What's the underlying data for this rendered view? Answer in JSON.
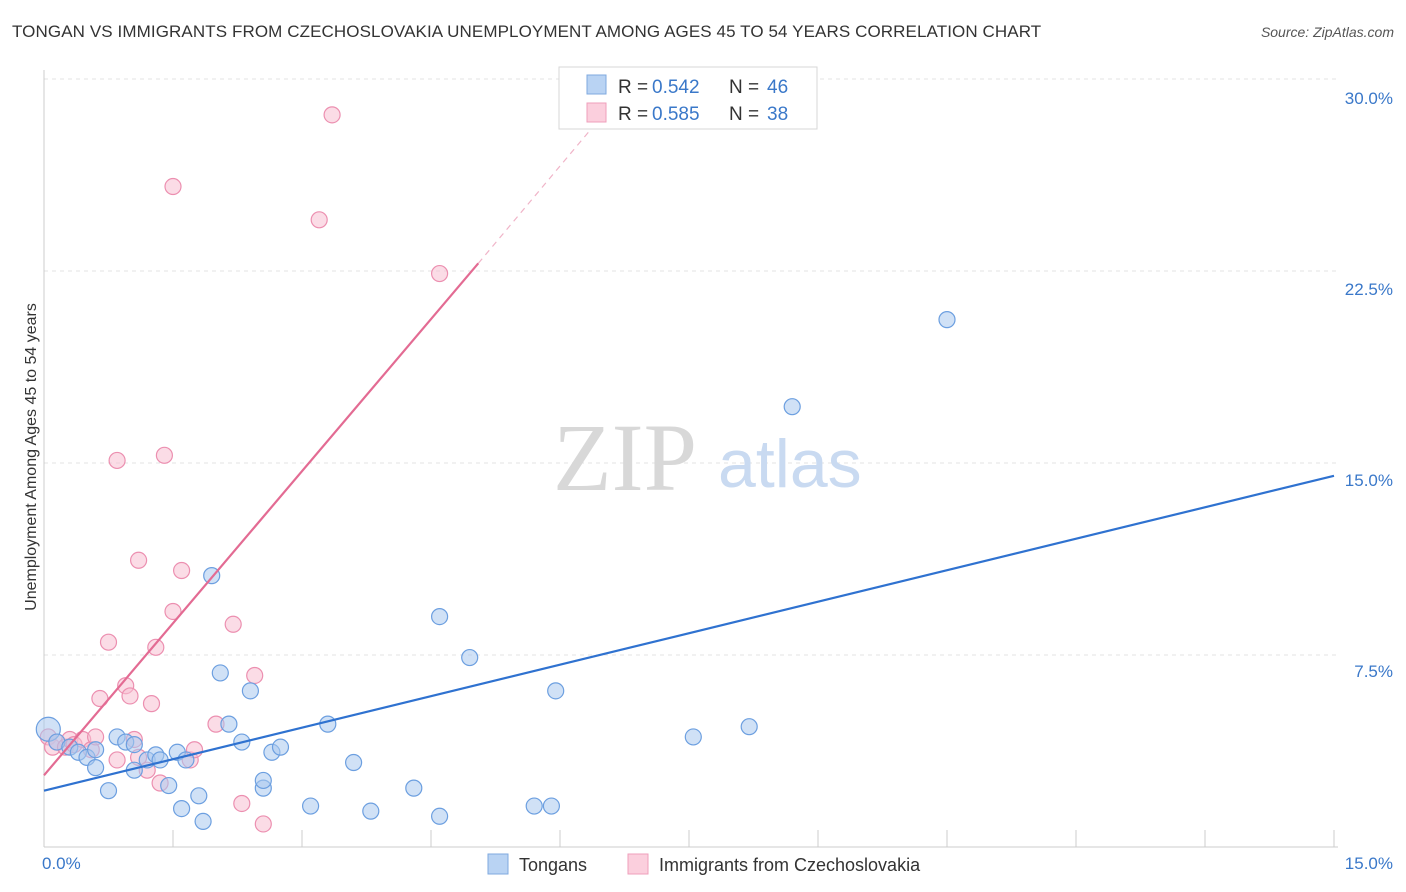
{
  "header": {
    "title": "TONGAN VS IMMIGRANTS FROM CZECHOSLOVAKIA UNEMPLOYMENT AMONG AGES 45 TO 54 YEARS CORRELATION CHART",
    "source": "Source: ZipAtlas.com"
  },
  "watermark": {
    "zip": "ZIP",
    "atlas": "atlas"
  },
  "legend": {
    "r_label": "R =",
    "n_label": "N =",
    "rows": [
      {
        "r": "0.542",
        "n": "46",
        "color": "#9fc3ee"
      },
      {
        "r": "0.585",
        "n": "38",
        "color": "#f5b8cc"
      }
    ]
  },
  "bottom_legend": [
    {
      "label": "Tongans",
      "color": "#9fc3ee"
    },
    {
      "label": "Immigrants from Czechoslovakia",
      "color": "#f5b8cc"
    }
  ],
  "colors": {
    "blue_fill": "#a9c9ef",
    "blue_stroke": "#6c9fe0",
    "blue_line": "#2f72d0",
    "pink_fill": "#f7bfd1",
    "pink_stroke": "#ec8fb0",
    "pink_line": "#e36b93",
    "tick_text": "#3a78c9"
  },
  "chart_data": {
    "type": "scatter",
    "title": "TONGAN VS IMMIGRANTS FROM CZECHOSLOVAKIA UNEMPLOYMENT AMONG AGES 45 TO 54 YEARS CORRELATION CHART",
    "xlabel": "",
    "ylabel": "Unemployment Among Ages 45 to 54 years",
    "xlim": [
      0,
      15
    ],
    "ylim": [
      0,
      31
    ],
    "x_tick_labels": [
      "0.0%",
      "15.0%"
    ],
    "y_ticks": [
      7.5,
      15.0,
      22.5,
      30.0
    ],
    "y_tick_labels": [
      "7.5%",
      "15.0%",
      "22.5%",
      "30.0%"
    ],
    "grid": true,
    "series": [
      {
        "name": "Tongans",
        "r": 0.542,
        "n": 46,
        "trend": {
          "x": [
            0,
            15
          ],
          "y": [
            2.2,
            14.5
          ]
        },
        "points": [
          [
            0.05,
            4.6
          ],
          [
            0.15,
            4.1
          ],
          [
            0.3,
            3.9
          ],
          [
            0.4,
            3.7
          ],
          [
            0.5,
            3.5
          ],
          [
            0.6,
            3.8
          ],
          [
            0.6,
            3.1
          ],
          [
            0.75,
            2.2
          ],
          [
            0.85,
            4.3
          ],
          [
            0.95,
            4.1
          ],
          [
            1.05,
            4.0
          ],
          [
            1.05,
            3.0
          ],
          [
            1.2,
            3.4
          ],
          [
            1.3,
            3.6
          ],
          [
            1.35,
            3.4
          ],
          [
            1.45,
            2.4
          ],
          [
            1.55,
            3.7
          ],
          [
            1.6,
            1.5
          ],
          [
            1.65,
            3.4
          ],
          [
            1.8,
            2.0
          ],
          [
            1.85,
            1.0
          ],
          [
            1.95,
            10.6
          ],
          [
            2.05,
            6.8
          ],
          [
            2.15,
            4.8
          ],
          [
            2.3,
            4.1
          ],
          [
            2.4,
            6.1
          ],
          [
            2.55,
            2.3
          ],
          [
            2.55,
            2.6
          ],
          [
            2.65,
            3.7
          ],
          [
            2.75,
            3.9
          ],
          [
            3.1,
            1.6
          ],
          [
            3.3,
            4.8
          ],
          [
            3.6,
            3.3
          ],
          [
            3.8,
            1.4
          ],
          [
            4.3,
            2.3
          ],
          [
            4.6,
            1.2
          ],
          [
            4.6,
            9.0
          ],
          [
            4.95,
            7.4
          ],
          [
            5.7,
            1.6
          ],
          [
            5.9,
            1.6
          ],
          [
            5.95,
            6.1
          ],
          [
            7.55,
            4.3
          ],
          [
            8.2,
            4.7
          ],
          [
            8.7,
            17.2
          ],
          [
            10.5,
            20.6
          ]
        ]
      },
      {
        "name": "Immigrants from Czechoslovakia",
        "r": 0.585,
        "n": 38,
        "trend": {
          "x": [
            0,
            5.05
          ],
          "y": [
            2.8,
            22.8
          ]
        },
        "trend_dashed": {
          "x": [
            5.05,
            6.4
          ],
          "y": [
            22.8,
            28.2
          ]
        },
        "points": [
          [
            0.05,
            4.3
          ],
          [
            0.1,
            3.9
          ],
          [
            0.15,
            4.1
          ],
          [
            0.25,
            3.9
          ],
          [
            0.3,
            4.2
          ],
          [
            0.35,
            4.0
          ],
          [
            0.45,
            4.2
          ],
          [
            0.55,
            3.8
          ],
          [
            0.6,
            4.3
          ],
          [
            0.65,
            5.8
          ],
          [
            0.75,
            8.0
          ],
          [
            0.85,
            15.1
          ],
          [
            0.85,
            3.4
          ],
          [
            0.95,
            6.3
          ],
          [
            1.0,
            5.9
          ],
          [
            1.05,
            4.2
          ],
          [
            1.1,
            3.5
          ],
          [
            1.1,
            11.2
          ],
          [
            1.2,
            3.0
          ],
          [
            1.25,
            5.6
          ],
          [
            1.3,
            7.8
          ],
          [
            1.35,
            2.5
          ],
          [
            1.4,
            15.3
          ],
          [
            1.5,
            9.2
          ],
          [
            1.5,
            25.8
          ],
          [
            1.6,
            10.8
          ],
          [
            1.7,
            3.4
          ],
          [
            1.75,
            3.8
          ],
          [
            2.0,
            4.8
          ],
          [
            2.2,
            8.7
          ],
          [
            2.3,
            1.7
          ],
          [
            2.45,
            6.7
          ],
          [
            2.55,
            0.9
          ],
          [
            3.2,
            24.5
          ],
          [
            3.35,
            28.6
          ],
          [
            4.6,
            22.4
          ]
        ]
      }
    ]
  }
}
